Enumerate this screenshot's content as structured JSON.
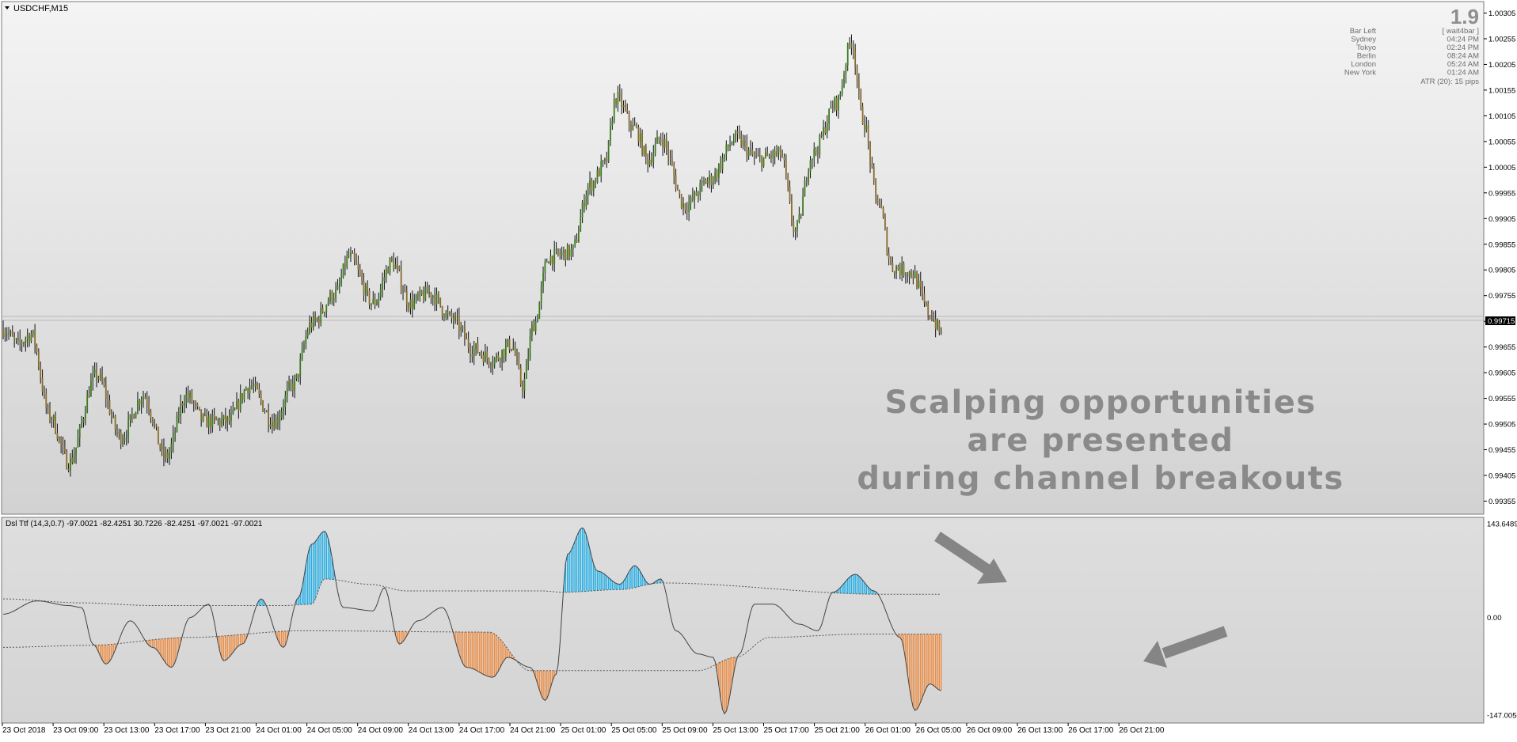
{
  "main_chart": {
    "symbol_label": "USDCHF,M15",
    "current_price_tag": "0.99715",
    "price_axis_labels": [
      "1.00305",
      "1.00255",
      "1.00205",
      "1.00155",
      "1.00105",
      "1.00055",
      "1.00005",
      "0.99955",
      "0.99905",
      "0.99855",
      "0.99805",
      "0.99755",
      "0.99705",
      "0.99655",
      "0.99605",
      "0.99555",
      "0.99505",
      "0.99455",
      "0.99405",
      "0.99355"
    ],
    "info_panel": {
      "big_value": "1.9",
      "rows": [
        {
          "label": "Bar Left",
          "value": "[ wait4bar ]"
        },
        {
          "label": "Sydney",
          "value": "04:24 PM"
        },
        {
          "label": "Tokyo",
          "value": "02:24 PM"
        },
        {
          "label": "Berlin",
          "value": "08:24 AM"
        },
        {
          "label": "London",
          "value": "05:24 AM"
        },
        {
          "label": "New York",
          "value": "01:24 AM"
        }
      ],
      "atr": "ATR (20): 15 pips"
    },
    "annotation": {
      "line1": "Scalping opportunities",
      "line2": "are presented",
      "line3": "during channel breakouts"
    }
  },
  "indicator": {
    "label": "Dsl Ttf (14,3,0.7) -97.0021 -82.4251 30.7226 -82.4251 -97.0021 -97.0021",
    "axis_labels": [
      "143.6489",
      "0.00",
      "-147.0050"
    ]
  },
  "time_axis_labels": [
    "23 Oct 2018",
    "23 Oct 09:00",
    "23 Oct 13:00",
    "23 Oct 17:00",
    "23 Oct 21:00",
    "24 Oct 01:00",
    "24 Oct 05:00",
    "24 Oct 09:00",
    "24 Oct 13:00",
    "24 Oct 17:00",
    "24 Oct 21:00",
    "25 Oct 01:00",
    "25 Oct 05:00",
    "25 Oct 09:00",
    "25 Oct 13:00",
    "25 Oct 17:00",
    "25 Oct 21:00",
    "26 Oct 01:00",
    "26 Oct 05:00",
    "26 Oct 09:00",
    "26 Oct 13:00",
    "26 Oct 17:00",
    "26 Oct 21:00"
  ],
  "colors": {
    "bull_candle": "#3a7a1e",
    "bear_candle": "#8a6a2a",
    "up_histogram": "#1ab0ea",
    "down_histogram": "#f08a3c",
    "arrow": "#808080"
  },
  "chart_data": {
    "type": "candlestick",
    "symbol": "USDCHF",
    "timeframe": "M15",
    "y_range": [
      0.99345,
      1.00315
    ],
    "price_anchors": [
      [
        0,
        0.9969
      ],
      [
        8,
        0.9966
      ],
      [
        15,
        0.9968
      ],
      [
        25,
        0.9952
      ],
      [
        35,
        0.9943
      ],
      [
        50,
        0.996
      ],
      [
        63,
        0.9948
      ],
      [
        75,
        0.9956
      ],
      [
        87,
        0.9944
      ],
      [
        98,
        0.9956
      ],
      [
        108,
        0.9951
      ],
      [
        120,
        0.9951
      ],
      [
        132,
        0.9958
      ],
      [
        145,
        0.9951
      ],
      [
        155,
        0.9958
      ],
      [
        165,
        0.997
      ],
      [
        178,
        0.9976
      ],
      [
        185,
        0.9983
      ],
      [
        198,
        0.9974
      ],
      [
        208,
        0.9982
      ],
      [
        218,
        0.9974
      ],
      [
        228,
        0.9976
      ],
      [
        240,
        0.9971
      ],
      [
        252,
        0.9965
      ],
      [
        262,
        0.9963
      ],
      [
        272,
        0.9966
      ],
      [
        278,
        0.9958
      ],
      [
        284,
        0.997
      ],
      [
        292,
        0.9983
      ],
      [
        304,
        0.9984
      ],
      [
        314,
        0.9997
      ],
      [
        322,
        1.0001
      ],
      [
        328,
        1.0014
      ],
      [
        338,
        1.0008
      ],
      [
        345,
        1.0002
      ],
      [
        352,
        1.0006
      ],
      [
        365,
        0.9993
      ],
      [
        378,
        0.9998
      ],
      [
        392,
        1.0006
      ],
      [
        404,
        1.0002
      ],
      [
        416,
        1.0003
      ],
      [
        424,
        0.9988
      ],
      [
        433,
        1.0003
      ],
      [
        446,
        1.0013
      ],
      [
        454,
        1.0025
      ],
      [
        460,
        1.001
      ],
      [
        468,
        0.9994
      ],
      [
        476,
        0.9981
      ],
      [
        486,
        0.998
      ],
      [
        496,
        0.9972
      ],
      [
        502,
        0.9968
      ]
    ]
  },
  "indicator_data": {
    "type": "line+histogram",
    "name": "Dsl Ttf",
    "y_range": [
      -147.005,
      143.6489
    ],
    "ttf_anchors": [
      [
        0,
        5
      ],
      [
        18,
        25
      ],
      [
        35,
        18
      ],
      [
        42,
        15
      ],
      [
        48,
        -40
      ],
      [
        55,
        -70
      ],
      [
        68,
        -5
      ],
      [
        80,
        -45
      ],
      [
        90,
        -75
      ],
      [
        100,
        0
      ],
      [
        110,
        20
      ],
      [
        118,
        -65
      ],
      [
        128,
        -40
      ],
      [
        138,
        28
      ],
      [
        150,
        -45
      ],
      [
        158,
        30
      ],
      [
        165,
        110
      ],
      [
        172,
        130
      ],
      [
        182,
        15
      ],
      [
        198,
        10
      ],
      [
        204,
        45
      ],
      [
        212,
        -40
      ],
      [
        222,
        -5
      ],
      [
        235,
        15
      ],
      [
        248,
        -75
      ],
      [
        262,
        -90
      ],
      [
        270,
        -60
      ],
      [
        282,
        -75
      ],
      [
        290,
        -125
      ],
      [
        296,
        -85
      ],
      [
        302,
        95
      ],
      [
        310,
        135
      ],
      [
        318,
        70
      ],
      [
        330,
        50
      ],
      [
        338,
        78
      ],
      [
        346,
        50
      ],
      [
        352,
        58
      ],
      [
        360,
        -20
      ],
      [
        372,
        -55
      ],
      [
        380,
        -60
      ],
      [
        386,
        -145
      ],
      [
        394,
        -55
      ],
      [
        402,
        20
      ],
      [
        412,
        20
      ],
      [
        426,
        -10
      ],
      [
        436,
        -20
      ],
      [
        444,
        38
      ],
      [
        456,
        65
      ],
      [
        466,
        40
      ],
      [
        480,
        -30
      ],
      [
        488,
        -140
      ],
      [
        496,
        -100
      ],
      [
        502,
        -110
      ]
    ],
    "upper_level_anchors": [
      [
        0,
        28
      ],
      [
        42,
        22
      ],
      [
        80,
        18
      ],
      [
        150,
        18
      ],
      [
        165,
        20
      ],
      [
        172,
        58
      ],
      [
        196,
        50
      ],
      [
        216,
        40
      ],
      [
        288,
        40
      ],
      [
        300,
        38
      ],
      [
        330,
        42
      ],
      [
        352,
        52
      ],
      [
        470,
        35
      ],
      [
        502,
        35
      ]
    ],
    "lower_level_anchors": [
      [
        0,
        -45
      ],
      [
        45,
        -42
      ],
      [
        100,
        -30
      ],
      [
        160,
        -20
      ],
      [
        260,
        -22
      ],
      [
        282,
        -80
      ],
      [
        300,
        -80
      ],
      [
        372,
        -80
      ],
      [
        392,
        -60
      ],
      [
        410,
        -30
      ],
      [
        460,
        -25
      ],
      [
        502,
        -25
      ]
    ]
  }
}
